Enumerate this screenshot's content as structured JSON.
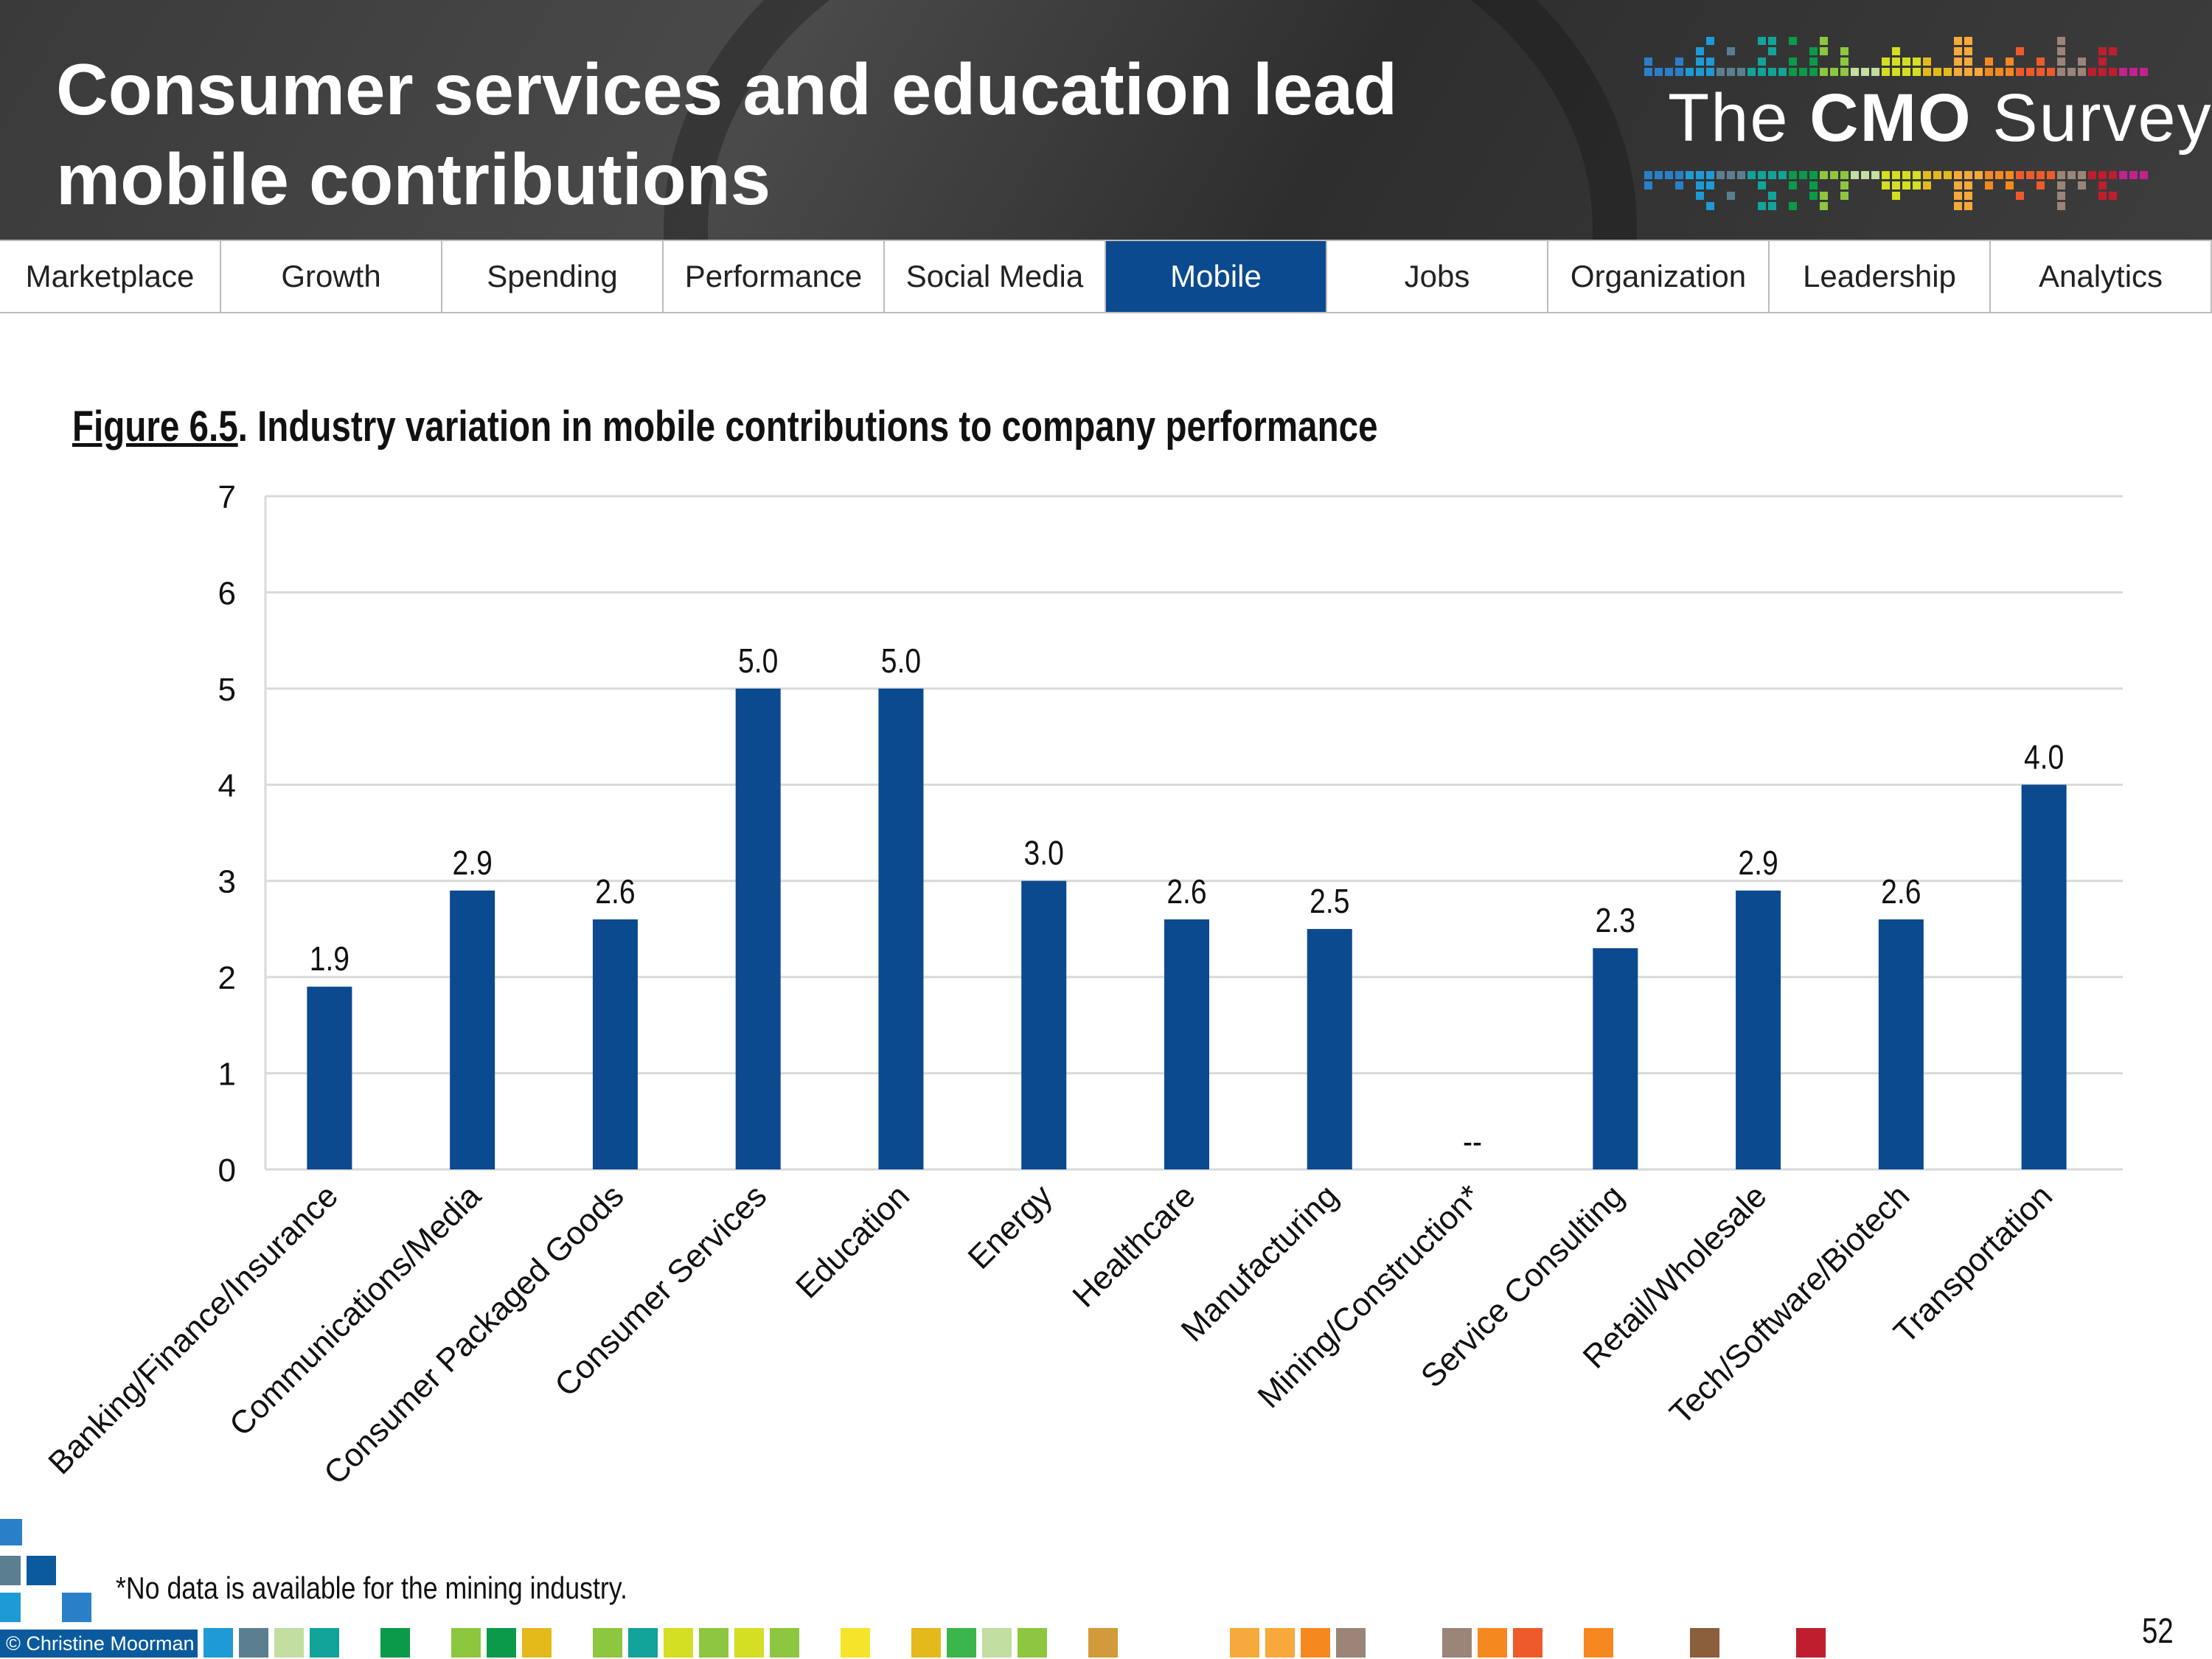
{
  "header": {
    "title_line1": "Consumer services and education lead",
    "title_line2": "mobile contributions",
    "logo_text_the": "The",
    "logo_text_cmo": "CMO",
    "logo_text_survey": "Survey"
  },
  "nav": {
    "tabs": [
      {
        "label": "Marketplace"
      },
      {
        "label": "Growth"
      },
      {
        "label": "Spending"
      },
      {
        "label": "Performance"
      },
      {
        "label": "Social Media"
      },
      {
        "label": "Mobile",
        "active": true
      },
      {
        "label": "Jobs"
      },
      {
        "label": "Organization"
      },
      {
        "label": "Leadership"
      },
      {
        "label": "Analytics"
      }
    ],
    "active_color": "#0b4a8f"
  },
  "figure": {
    "number": "Figure 6.5",
    "title": ".  Industry variation in mobile contributions to company performance"
  },
  "chart_data": {
    "type": "bar",
    "title": "Figure 6.5.  Industry variation in mobile contributions to company performance",
    "categories": [
      "Banking/Finance/Insurance",
      "Communications/Media",
      "Consumer Packaged Goods",
      "Consumer Services",
      "Education",
      "Energy",
      "Healthcare",
      "Manufacturing",
      "Mining/Construction*",
      "Service Consulting",
      "Retail/Wholesale",
      "Tech/Software/Biotech",
      "Transportation"
    ],
    "values": [
      1.9,
      2.9,
      2.6,
      5.0,
      5.0,
      3.0,
      2.6,
      2.5,
      null,
      2.3,
      2.9,
      2.6,
      4.0
    ],
    "data_labels": [
      "1.9",
      "2.9",
      "2.6",
      "5.0",
      "5.0",
      "3.0",
      "2.6",
      "2.5",
      "--",
      "2.3",
      "2.9",
      "2.6",
      "4.0"
    ],
    "ylim": [
      0,
      7
    ],
    "yticks": [
      "0",
      "1",
      "2",
      "3",
      "4",
      "5",
      "6",
      "7"
    ],
    "grid": true,
    "bar_color": "#0b4a8f",
    "xlabel": "",
    "ylabel": ""
  },
  "footer": {
    "footnote": "*No data is available for the mining industry.",
    "copyright": "© Christine Moorman",
    "page_number": "52"
  }
}
